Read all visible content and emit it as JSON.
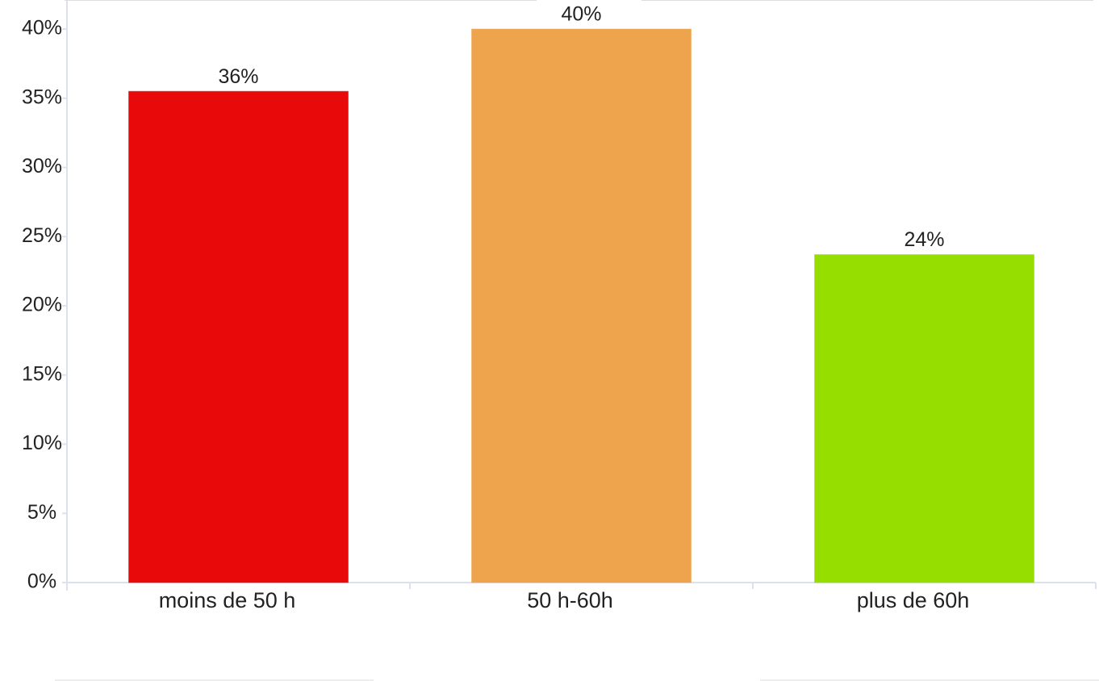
{
  "chart_data": {
    "type": "bar",
    "categories": [
      "moins de 50 h",
      "50 h-60h",
      "plus de 60h"
    ],
    "values": [
      35.5,
      40,
      23.7
    ],
    "value_labels": [
      "36%",
      "40%",
      "24%"
    ],
    "colors": [
      "#e8090a",
      "#eda44c",
      "#96de00"
    ],
    "ylim": [
      0,
      40
    ],
    "yticks": [
      {
        "value": 0,
        "label": "0%"
      },
      {
        "value": 5,
        "label": "5%"
      },
      {
        "value": 10,
        "label": "10%"
      },
      {
        "value": 15,
        "label": "15%"
      },
      {
        "value": 20,
        "label": "20%"
      },
      {
        "value": 25,
        "label": "25%"
      },
      {
        "value": 30,
        "label": "30%"
      },
      {
        "value": 35,
        "label": "35%"
      },
      {
        "value": 40,
        "label": "40%"
      }
    ],
    "grid": false
  }
}
